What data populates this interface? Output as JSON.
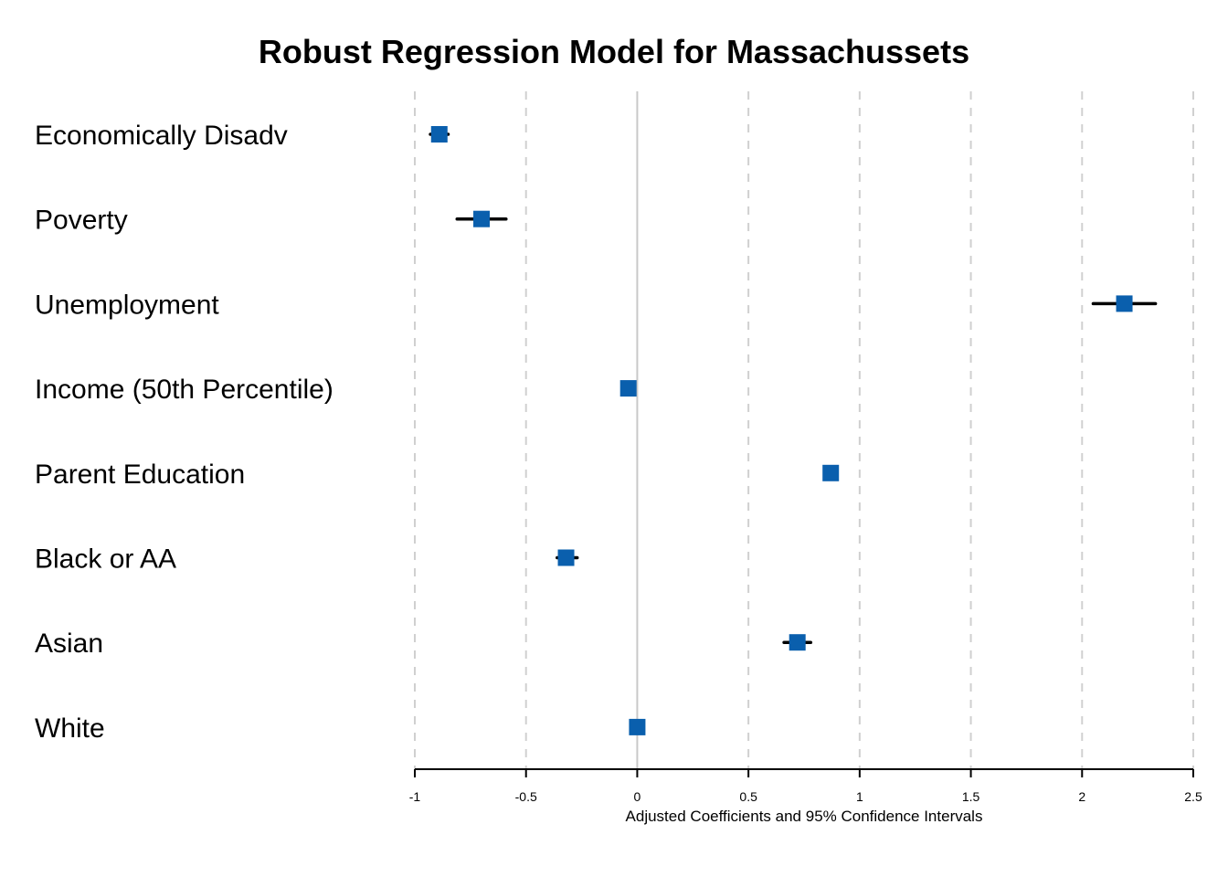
{
  "chart_data": {
    "type": "scatter",
    "subtype": "coefficient-plot",
    "title": "Robust Regression Model for Massachussets",
    "xlabel": "Adjusted Coefficients and 95% Confidence Intervals",
    "ylabel": "",
    "xlim": [
      -1,
      2.5
    ],
    "xticks": [
      -1,
      -0.5,
      0,
      0.5,
      1,
      1.5,
      2,
      2.5
    ],
    "xtick_labels": [
      "-1",
      "-0.5",
      "0",
      "0.5",
      "1",
      "1.5",
      "2",
      "2.5"
    ],
    "grid": "vertical dashed",
    "reference_line": 0,
    "categories": [
      "Economically Disadv",
      "Poverty",
      "Unemployment",
      "Income (50th Percentile)",
      "Parent Education",
      "Black or AA",
      "Asian",
      "White"
    ],
    "series": [
      {
        "estimates": [
          -0.89,
          -0.7,
          2.19,
          -0.04,
          0.87,
          -0.32,
          0.72,
          0.0
        ],
        "ci_low": [
          -0.93,
          -0.81,
          2.05,
          -0.06,
          0.85,
          -0.36,
          0.66,
          -0.01
        ],
        "ci_high": [
          -0.85,
          -0.59,
          2.33,
          -0.02,
          0.89,
          -0.27,
          0.78,
          0.01
        ],
        "color": "#0a5fad"
      }
    ],
    "ci_color": "#000000",
    "grid_color": "#d0d0d0",
    "zero_line_color": "#c8c8c8"
  }
}
